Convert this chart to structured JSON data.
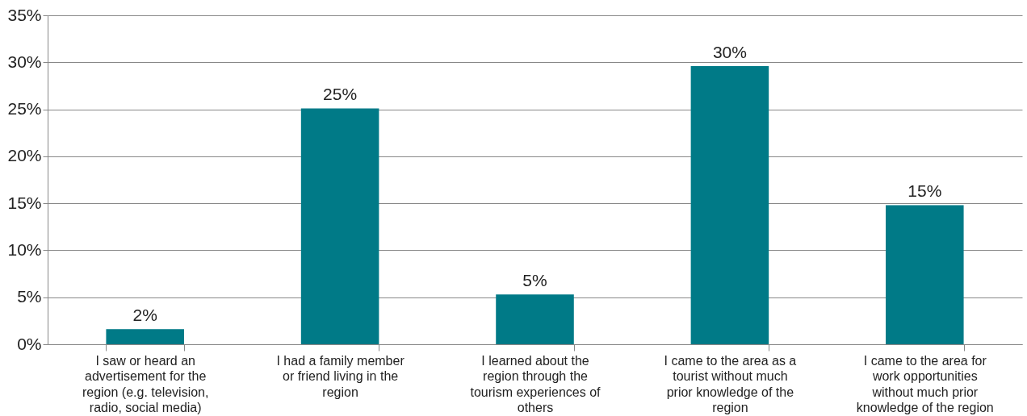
{
  "chart_data": {
    "type": "bar",
    "categories": [
      "I saw or heard an advertisement for the region (e.g. television, radio, social media)",
      "I had a family member or friend living in the region",
      "I learned about the region through the tourism experiences of others",
      "I came to the area as a tourist without much prior knowledge of the region",
      "I came to the area for work opportunities without much prior knowledge of the region"
    ],
    "values": [
      1.6,
      25.1,
      5.3,
      29.6,
      14.8
    ],
    "value_labels": [
      "2%",
      "25%",
      "5%",
      "30%",
      "15%"
    ],
    "color": "#007a87",
    "ylim": [
      0,
      35
    ],
    "yticks": [
      {
        "value": 0,
        "label": "0%"
      },
      {
        "value": 5,
        "label": "5%"
      },
      {
        "value": 10,
        "label": "10%"
      },
      {
        "value": 15,
        "label": "15%"
      },
      {
        "value": 20,
        "label": "20%"
      },
      {
        "value": 25,
        "label": "25%"
      },
      {
        "value": 30,
        "label": "30%"
      },
      {
        "value": 35,
        "label": "35%"
      }
    ],
    "grid": "y"
  }
}
